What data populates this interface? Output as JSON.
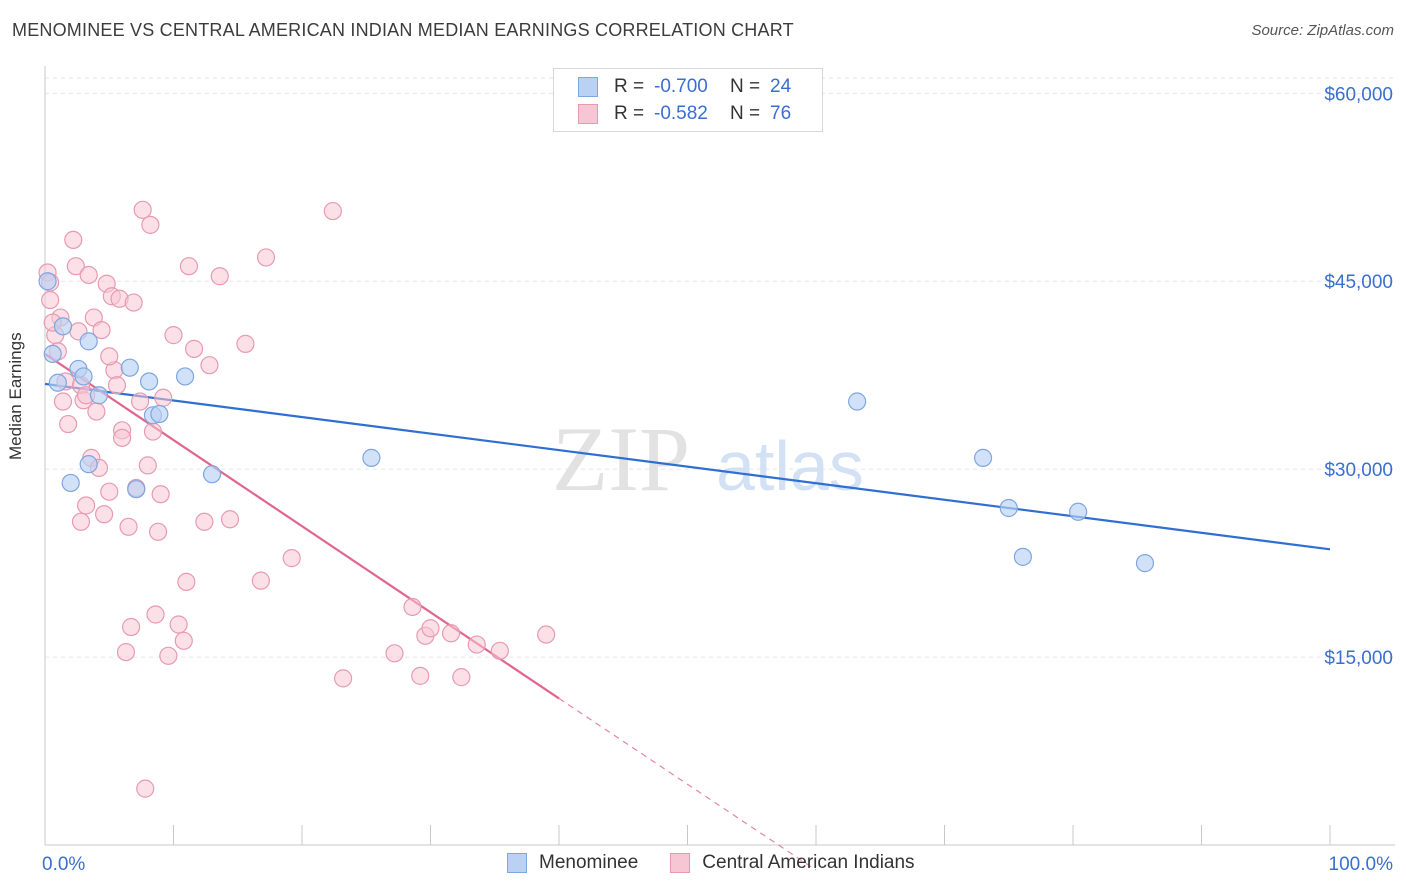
{
  "header": {
    "title": "MENOMINEE VS CENTRAL AMERICAN INDIAN MEDIAN EARNINGS CORRELATION CHART",
    "source": "Source: ZipAtlas.com"
  },
  "legend": {
    "rows": [
      {
        "r_label": "R =",
        "r_value": "-0.700",
        "n_label": "N =",
        "n_value": "24"
      },
      {
        "r_label": "R =",
        "r_value": "-0.582",
        "n_label": "N =",
        "n_value": "76"
      }
    ]
  },
  "bottom_legend": {
    "items": [
      {
        "label": "Menominee"
      },
      {
        "label": "Central American Indians"
      }
    ]
  },
  "colors": {
    "blue_fill": "#b9d1f3",
    "blue_stroke": "#7ea6e0",
    "blue_line": "#2f6fd1",
    "pink_fill": "#f7c6d4",
    "pink_stroke": "#e89ab2",
    "pink_line": "#e0668f",
    "tick_label": "#3a6fcf",
    "grid": "#e6e6e6"
  },
  "chart_data": {
    "type": "scatter",
    "title": "MENOMINEE VS CENTRAL AMERICAN INDIAN MEDIAN EARNINGS CORRELATION CHART",
    "xlabel": "",
    "ylabel": "Median Earnings",
    "xlim": [
      0,
      100
    ],
    "ylim": [
      0,
      62500
    ],
    "x_tick_labels": [
      "0.0%",
      "100.0%"
    ],
    "y_ticks": [
      15000,
      30000,
      45000,
      60000
    ],
    "y_tick_labels": [
      "$15,000",
      "$30,000",
      "$45,000",
      "$60,000"
    ],
    "grid": true,
    "legend_position": "top-center",
    "watermark": "ZIPatlas",
    "series": [
      {
        "name": "Menominee",
        "color": "#7ea6e0",
        "points": [
          [
            0.2,
            45000
          ],
          [
            0.6,
            39200
          ],
          [
            1.0,
            36900
          ],
          [
            1.4,
            41400
          ],
          [
            2.0,
            28900
          ],
          [
            2.6,
            38000
          ],
          [
            3.0,
            37400
          ],
          [
            3.4,
            30400
          ],
          [
            3.4,
            40200
          ],
          [
            4.2,
            35900
          ],
          [
            6.6,
            38100
          ],
          [
            7.1,
            28400
          ],
          [
            8.1,
            37000
          ],
          [
            8.4,
            34300
          ],
          [
            8.9,
            34400
          ],
          [
            10.9,
            37400
          ],
          [
            13.0,
            29600
          ],
          [
            25.4,
            30900
          ],
          [
            63.2,
            35400
          ],
          [
            73.0,
            30900
          ],
          [
            75.0,
            26900
          ],
          [
            76.1,
            23000
          ],
          [
            80.4,
            26600
          ],
          [
            85.6,
            22500
          ]
        ],
        "trend": {
          "x": [
            0,
            100
          ],
          "y": [
            36800,
            23600
          ]
        }
      },
      {
        "name": "Central American Indians",
        "color": "#e89ab2",
        "points": [
          [
            0.2,
            45700
          ],
          [
            0.4,
            44900
          ],
          [
            0.4,
            43500
          ],
          [
            0.8,
            40700
          ],
          [
            1.0,
            39400
          ],
          [
            1.2,
            42100
          ],
          [
            1.4,
            35400
          ],
          [
            1.6,
            37000
          ],
          [
            1.8,
            33600
          ],
          [
            2.2,
            48300
          ],
          [
            2.4,
            46200
          ],
          [
            2.6,
            41000
          ],
          [
            2.8,
            36700
          ],
          [
            3.0,
            35500
          ],
          [
            3.2,
            27100
          ],
          [
            3.4,
            45500
          ],
          [
            3.6,
            30900
          ],
          [
            3.8,
            42100
          ],
          [
            4.0,
            34600
          ],
          [
            4.2,
            30100
          ],
          [
            4.4,
            41100
          ],
          [
            4.6,
            26400
          ],
          [
            4.8,
            44800
          ],
          [
            5.0,
            28200
          ],
          [
            5.2,
            43800
          ],
          [
            5.4,
            37900
          ],
          [
            5.6,
            36700
          ],
          [
            5.8,
            43600
          ],
          [
            6.0,
            33100
          ],
          [
            6.3,
            15400
          ],
          [
            6.5,
            25400
          ],
          [
            6.7,
            17400
          ],
          [
            6.9,
            43300
          ],
          [
            7.1,
            28500
          ],
          [
            7.4,
            35400
          ],
          [
            7.6,
            50700
          ],
          [
            7.8,
            4500
          ],
          [
            8.0,
            30300
          ],
          [
            8.2,
            49500
          ],
          [
            8.4,
            33000
          ],
          [
            8.6,
            18400
          ],
          [
            8.8,
            25000
          ],
          [
            9.2,
            35700
          ],
          [
            9.6,
            15100
          ],
          [
            10.0,
            40700
          ],
          [
            10.4,
            17600
          ],
          [
            10.8,
            16300
          ],
          [
            11.2,
            46200
          ],
          [
            11.6,
            39600
          ],
          [
            12.4,
            25800
          ],
          [
            12.8,
            38300
          ],
          [
            13.6,
            45400
          ],
          [
            14.4,
            26000
          ],
          [
            15.6,
            40000
          ],
          [
            16.8,
            21100
          ],
          [
            17.2,
            46900
          ],
          [
            19.2,
            22900
          ],
          [
            22.4,
            50600
          ],
          [
            23.2,
            13300
          ],
          [
            27.2,
            15300
          ],
          [
            28.6,
            19000
          ],
          [
            29.2,
            13500
          ],
          [
            29.6,
            16700
          ],
          [
            30.0,
            17300
          ],
          [
            31.6,
            16900
          ],
          [
            32.4,
            13400
          ],
          [
            33.6,
            16000
          ],
          [
            35.4,
            15500
          ],
          [
            39.0,
            16800
          ],
          [
            0.6,
            41700
          ],
          [
            3.2,
            35900
          ],
          [
            5.0,
            39000
          ],
          [
            9.0,
            28000
          ],
          [
            11.0,
            21000
          ],
          [
            2.8,
            25800
          ],
          [
            6.0,
            32500
          ]
        ],
        "trend": {
          "x": [
            0,
            40
          ],
          "y": [
            39200,
            11700
          ]
        },
        "trend_extension": {
          "x": [
            40,
            60
          ],
          "y": [
            11700,
            -2000
          ]
        }
      }
    ]
  }
}
